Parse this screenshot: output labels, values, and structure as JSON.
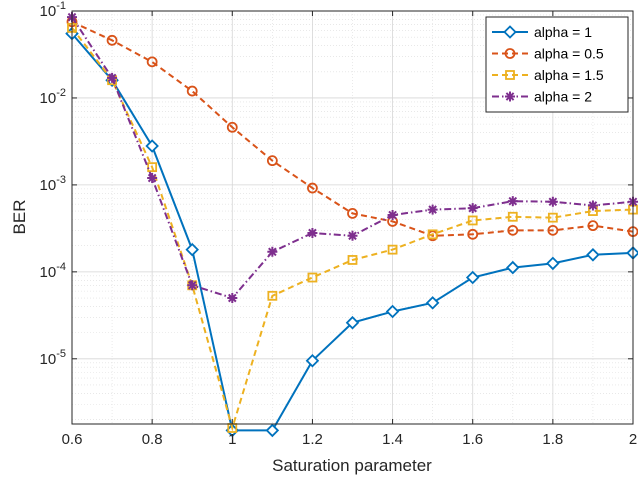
{
  "chart_data": {
    "type": "line",
    "title": "",
    "xlabel": "Saturation parameter",
    "ylabel": "BER",
    "xlim": [
      0.6,
      2
    ],
    "ylim_log10": [
      -5.75,
      -1
    ],
    "y_scale": "log",
    "grid": true,
    "minor_grid": true,
    "legend_position": "top-right",
    "x_ticks": [
      0.6,
      0.8,
      1,
      1.2,
      1.4,
      1.6,
      1.8,
      2
    ],
    "x_tick_labels": [
      "0.6",
      "0.8",
      "1",
      "1.2",
      "1.4",
      "1.6",
      "1.8",
      "2"
    ],
    "y_ticks": [
      {
        "value": 0.1,
        "base": "10",
        "exp": "-1"
      },
      {
        "value": 0.01,
        "base": "10",
        "exp": "-2"
      },
      {
        "value": 0.001,
        "base": "10",
        "exp": "-3"
      },
      {
        "value": 0.0001,
        "base": "10",
        "exp": "-4"
      },
      {
        "value": 1e-05,
        "base": "10",
        "exp": "-5"
      }
    ],
    "x": [
      0.6,
      0.7,
      0.8,
      0.9,
      1.0,
      1.1,
      1.2,
      1.3,
      1.4,
      1.5,
      1.6,
      1.7,
      1.8,
      1.9,
      2.0
    ],
    "series": [
      {
        "name": "alpha = 1",
        "color": "#0072BD",
        "dash": "solid",
        "marker": "diamond",
        "values": [
          0.055,
          0.016,
          0.0028,
          0.00018,
          1.5e-06,
          1.5e-06,
          9.5e-06,
          2.6e-05,
          3.5e-05,
          4.4e-05,
          8.6e-05,
          0.000112,
          0.000125,
          0.000157,
          0.000165
        ]
      },
      {
        "name": "alpha = 0.5",
        "color": "#D95319",
        "dash": "dashed",
        "marker": "circle",
        "values": [
          0.075,
          0.046,
          0.026,
          0.012,
          0.0046,
          0.0019,
          0.00092,
          0.00047,
          0.00038,
          0.00026,
          0.00027,
          0.0003,
          0.0003,
          0.00034,
          0.00029
        ]
      },
      {
        "name": "alpha = 1.5",
        "color": "#EDB120",
        "dash": "dashed",
        "marker": "square",
        "values": [
          0.064,
          0.016,
          0.0016,
          7e-05,
          1.6e-06,
          5.3e-05,
          8.6e-05,
          0.000137,
          0.00018,
          0.00027,
          0.00039,
          0.00043,
          0.00042,
          0.0005,
          0.00052
        ]
      },
      {
        "name": "alpha = 2",
        "color": "#7E2F8E",
        "dash": "dashdot",
        "marker": "asterisk",
        "values": [
          0.085,
          0.017,
          0.0012,
          7e-05,
          5e-05,
          0.00017,
          0.00028,
          0.00026,
          0.00045,
          0.00052,
          0.00054,
          0.00065,
          0.00064,
          0.00058,
          0.00064
        ]
      }
    ]
  }
}
